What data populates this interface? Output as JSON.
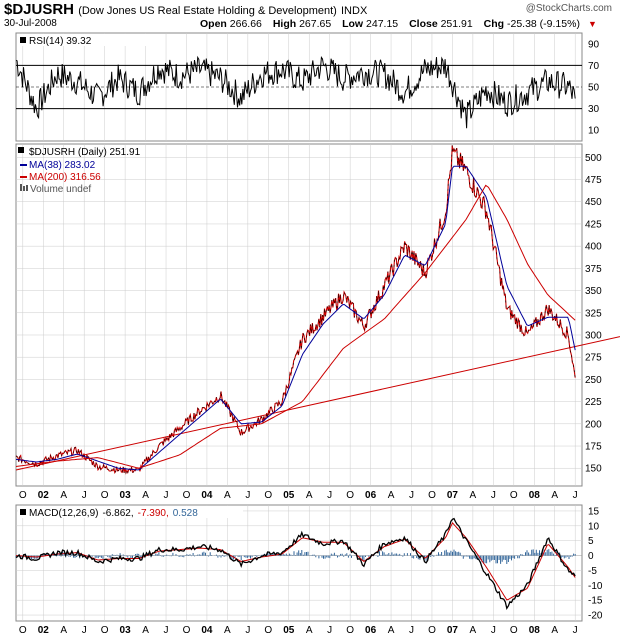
{
  "header": {
    "symbol": "$DJUSRH",
    "description": "(Dow Jones US Real Estate Holding & Development)",
    "exchange": "INDX",
    "date": "30-Jul-2008",
    "open_label": "Open",
    "open_value": "266.66",
    "high_label": "High",
    "high_value": "267.65",
    "low_label": "Low",
    "low_value": "247.15",
    "close_label": "Close",
    "close_value": "251.91",
    "chg_label": "Chg",
    "chg_value": "-25.38 (-9.15%)",
    "logo": "@StockCharts.com"
  },
  "colors": {
    "price": "#000000",
    "price_down": "#cc0000",
    "ma38": "#000099",
    "ma200": "#cc0000",
    "trendline": "#cc0000",
    "macd": "#000000",
    "signal": "#cc0000",
    "histogram": "#336699",
    "grid": "#cccccc",
    "rsi_ref": "#000000"
  },
  "chart_data": [
    {
      "type": "line",
      "name": "rsi",
      "title": "RSI(14) 39.32",
      "ylim": [
        0,
        100
      ],
      "y_ticks": [
        10,
        30,
        50,
        70,
        90
      ],
      "reference_lines": [
        30,
        50,
        70
      ],
      "x": [
        "2001-09",
        "2001-12",
        "2002-03",
        "2002-06",
        "2002-09",
        "2002-12",
        "2003-03",
        "2003-06",
        "2003-09",
        "2003-12",
        "2004-03",
        "2004-06",
        "2004-09",
        "2004-12",
        "2005-03",
        "2005-06",
        "2005-09",
        "2005-12",
        "2006-03",
        "2006-06",
        "2006-09",
        "2006-12",
        "2007-03",
        "2007-06",
        "2007-09",
        "2007-12",
        "2008-03",
        "2008-06",
        "2008-07"
      ],
      "values": [
        75,
        30,
        62,
        55,
        40,
        58,
        45,
        68,
        60,
        66,
        58,
        40,
        62,
        66,
        55,
        70,
        58,
        64,
        62,
        45,
        66,
        70,
        22,
        48,
        35,
        45,
        55,
        50,
        39.32
      ]
    },
    {
      "type": "line",
      "name": "price",
      "title": "$DJUSRH (Daily) 251.91",
      "ylim": [
        130,
        515
      ],
      "y_ticks": [
        150,
        175,
        200,
        225,
        250,
        275,
        300,
        325,
        350,
        375,
        400,
        425,
        450,
        475,
        500
      ],
      "legend": [
        {
          "label": "$DJUSRH (Daily) 251.91"
        },
        {
          "label": "MA(38) 283.02"
        },
        {
          "label": "MA(200) 316.56"
        },
        {
          "label": "Volume undef"
        }
      ],
      "x_labels": [
        "O",
        "02",
        "A",
        "J",
        "O",
        "03",
        "A",
        "J",
        "O",
        "04",
        "A",
        "J",
        "O",
        "05",
        "A",
        "J",
        "O",
        "06",
        "A",
        "J",
        "O",
        "07",
        "A",
        "J",
        "O",
        "08",
        "A",
        "J"
      ],
      "series": [
        {
          "name": "$DJUSRH",
          "dates": [
            "2001-09",
            "2001-12",
            "2002-03",
            "2002-06",
            "2002-09",
            "2002-12",
            "2003-03",
            "2003-06",
            "2003-09",
            "2003-12",
            "2004-03",
            "2004-06",
            "2004-09",
            "2004-12",
            "2005-03",
            "2005-06",
            "2005-09",
            "2005-12",
            "2006-03",
            "2006-06",
            "2006-09",
            "2006-12",
            "2007-01",
            "2007-03",
            "2007-06",
            "2007-09",
            "2007-12",
            "2008-03",
            "2008-06",
            "2008-07"
          ],
          "values": [
            162,
            155,
            164,
            170,
            152,
            148,
            148,
            175,
            195,
            215,
            232,
            190,
            205,
            225,
            295,
            320,
            345,
            310,
            355,
            400,
            370,
            440,
            505,
            485,
            440,
            330,
            300,
            330,
            300,
            251.91
          ]
        },
        {
          "name": "MA(38)",
          "dates": [
            "2001-09",
            "2001-12",
            "2002-03",
            "2002-06",
            "2002-09",
            "2002-12",
            "2003-03",
            "2003-06",
            "2003-09",
            "2003-12",
            "2004-03",
            "2004-06",
            "2004-09",
            "2004-12",
            "2005-03",
            "2005-06",
            "2005-09",
            "2005-12",
            "2006-03",
            "2006-06",
            "2006-09",
            "2006-12",
            "2007-01",
            "2007-03",
            "2007-06",
            "2007-09",
            "2007-12",
            "2008-03",
            "2008-06",
            "2008-07"
          ],
          "values": [
            160,
            157,
            160,
            166,
            158,
            150,
            148,
            168,
            188,
            208,
            228,
            200,
            202,
            220,
            278,
            312,
            335,
            318,
            345,
            390,
            378,
            425,
            490,
            490,
            455,
            355,
            310,
            320,
            320,
            283.02
          ]
        },
        {
          "name": "MA(200)",
          "dates": [
            "2001-09",
            "2002-03",
            "2002-09",
            "2003-03",
            "2003-09",
            "2004-03",
            "2004-09",
            "2005-03",
            "2005-09",
            "2006-03",
            "2006-09",
            "2007-03",
            "2007-06",
            "2007-09",
            "2007-12",
            "2008-03",
            "2008-07"
          ],
          "values": [
            152,
            158,
            162,
            150,
            165,
            195,
            200,
            225,
            285,
            318,
            370,
            430,
            470,
            430,
            380,
            345,
            316.56
          ]
        }
      ],
      "trendline": {
        "from": [
          "2001-09",
          148
        ],
        "to": [
          "2008-07",
          287
        ]
      }
    },
    {
      "type": "line",
      "name": "macd",
      "title": "MACD(12,26,9)",
      "macd_value": "-6.862,",
      "signal_value": "-7.390,",
      "hist_value": "0.528",
      "ylim": [
        -22,
        17
      ],
      "y_ticks": [
        -20,
        -15,
        -10,
        -5,
        0,
        5,
        10,
        15
      ],
      "series": [
        {
          "name": "MACD",
          "dates": [
            "2001-09",
            "2001-12",
            "2002-03",
            "2002-06",
            "2002-09",
            "2002-12",
            "2003-03",
            "2003-06",
            "2003-09",
            "2003-12",
            "2004-03",
            "2004-06",
            "2004-09",
            "2004-12",
            "2005-03",
            "2005-06",
            "2005-09",
            "2005-12",
            "2006-03",
            "2006-06",
            "2006-09",
            "2006-12",
            "2007-01",
            "2007-03",
            "2007-06",
            "2007-09",
            "2007-12",
            "2008-03",
            "2008-06",
            "2008-07"
          ],
          "values": [
            0,
            -1,
            1,
            1,
            -2,
            -1,
            -1,
            2,
            2,
            3,
            2,
            -3,
            0,
            1,
            7,
            4,
            5,
            -3,
            4,
            6,
            -2,
            7,
            13,
            5,
            -6,
            -17,
            -10,
            6,
            -5,
            -6.862
          ]
        },
        {
          "name": "Signal",
          "dates": [
            "2001-09",
            "2001-12",
            "2002-03",
            "2002-06",
            "2002-09",
            "2002-12",
            "2003-03",
            "2003-06",
            "2003-09",
            "2003-12",
            "2004-03",
            "2004-06",
            "2004-09",
            "2004-12",
            "2005-03",
            "2005-06",
            "2005-09",
            "2005-12",
            "2006-03",
            "2006-06",
            "2006-09",
            "2006-12",
            "2007-01",
            "2007-03",
            "2007-06",
            "2007-09",
            "2007-12",
            "2008-03",
            "2008-06",
            "2008-07"
          ],
          "values": [
            0,
            -0.5,
            0.5,
            1,
            -1.5,
            -1,
            -1,
            1.5,
            2,
            2.5,
            2,
            -2,
            -0.5,
            0.5,
            6,
            4.5,
            4.5,
            -2,
            3,
            5.5,
            -1,
            6,
            11,
            6,
            -4,
            -15,
            -11,
            4,
            -4,
            -7.39
          ]
        }
      ],
      "x_labels": [
        "O",
        "02",
        "A",
        "J",
        "O",
        "03",
        "A",
        "J",
        "O",
        "04",
        "A",
        "J",
        "O",
        "05",
        "A",
        "J",
        "O",
        "06",
        "A",
        "J",
        "O",
        "07",
        "A",
        "J",
        "O",
        "08",
        "A",
        "J"
      ]
    }
  ]
}
